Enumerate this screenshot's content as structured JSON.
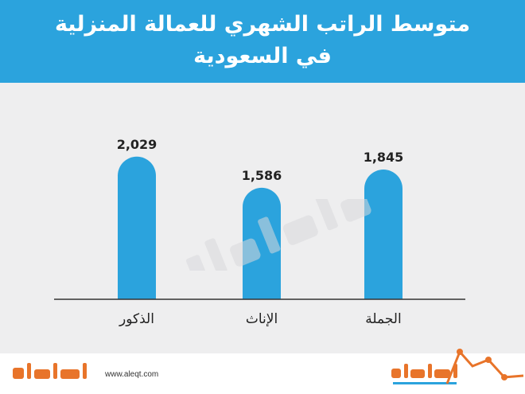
{
  "chart_data": {
    "type": "bar",
    "title": "متوسط الراتب الشهري للعمالة المنزلية في السعودية",
    "categories": [
      "الذكور",
      "الإناث",
      "الجملة"
    ],
    "values": [
      2029,
      1586,
      1845
    ],
    "value_labels": [
      "2,029",
      "1,586",
      "1,845"
    ],
    "ylim": [
      0,
      2400
    ],
    "grid": false,
    "bar_color": "#2ba3dd"
  },
  "header": {
    "title_line1": "متوسط الراتب الشهري للعمالة المنزلية",
    "title_line2": "في السعودية",
    "background": "#2ba3dd"
  },
  "footer": {
    "url": "www.aleqt.com",
    "logo_left_icon": "aleqtisadiah-logo",
    "logo_right_icon": "aleqtisadiah-logo-with-trend-line"
  },
  "watermark": {
    "icon": "aleqtisadiah-watermark"
  },
  "colors": {
    "accent_blue": "#2ba3dd",
    "panel": "#eeeeef",
    "logo_orange": "#e8742a"
  }
}
